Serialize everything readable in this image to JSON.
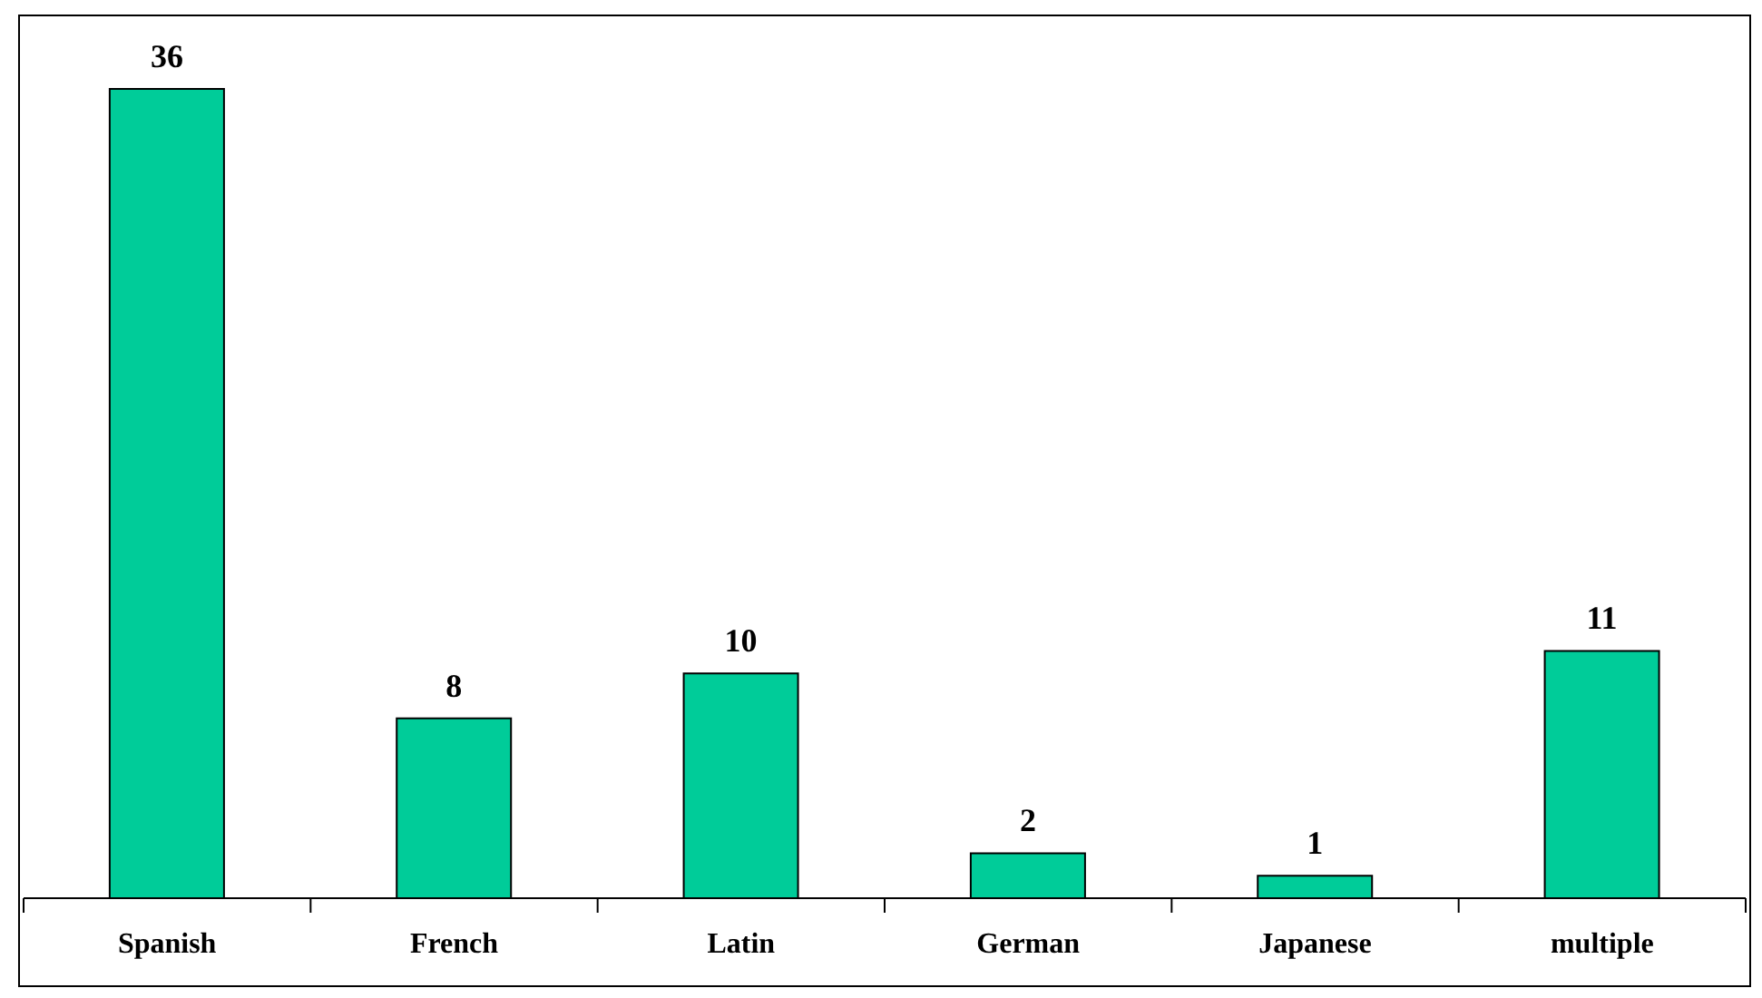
{
  "chart_data": {
    "type": "bar",
    "categories": [
      "Spanish",
      "French",
      "Latin",
      "German",
      "Japanese",
      "multiple"
    ],
    "values": [
      36,
      8,
      10,
      2,
      1,
      11
    ],
    "color": "#00cc99",
    "data_labels": true
  }
}
